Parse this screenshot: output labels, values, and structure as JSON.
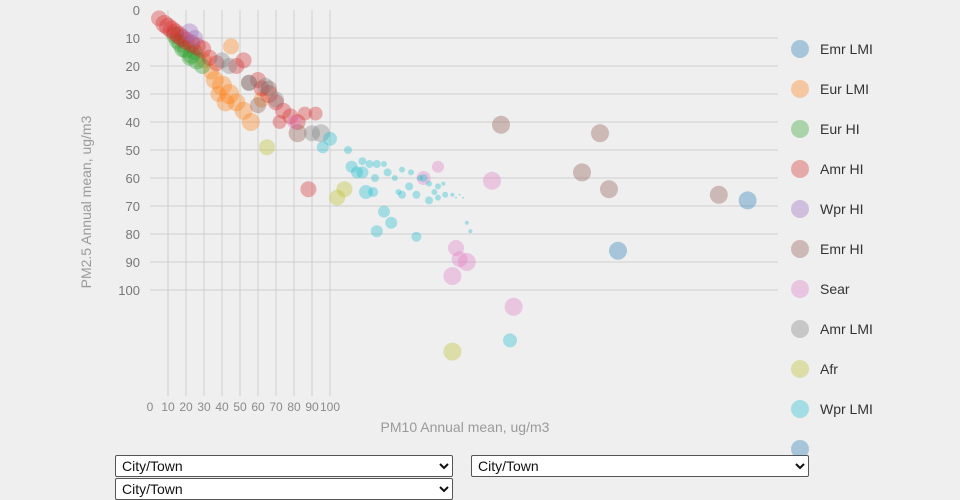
{
  "chart_data": {
    "type": "scatter",
    "xlabel": "PM10 Annual mean, ug/m3",
    "ylabel": "PM2.5 Annual mean, ug/m3",
    "xlim": [
      0,
      330
    ],
    "ylim": [
      0,
      135
    ],
    "x_ticks": [
      0,
      10,
      20,
      30,
      40,
      50,
      60,
      70,
      80,
      90,
      100
    ],
    "y_ticks": [
      0,
      10,
      20,
      30,
      40,
      50,
      60,
      70,
      80,
      90,
      100
    ],
    "x_gridlines": [
      10,
      20,
      30,
      40,
      50,
      60,
      70,
      80,
      90,
      100
    ],
    "y_gridlines": [
      10,
      20,
      30,
      40,
      50,
      60,
      70,
      80,
      90,
      100
    ],
    "legend_position": "right",
    "series": [
      {
        "name": "Emr LMI",
        "color": "#1f77b4",
        "points": [
          [
            332,
            68,
            9
          ],
          [
            260,
            86,
            9
          ]
        ]
      },
      {
        "name": "Eur LMI",
        "color": "#ff7f0e",
        "points": [
          [
            36,
            25,
            9
          ],
          [
            40,
            27,
            10
          ],
          [
            44,
            30,
            10
          ],
          [
            48,
            33,
            9
          ],
          [
            52,
            36,
            9
          ],
          [
            56,
            40,
            9
          ],
          [
            45,
            13,
            8
          ],
          [
            30,
            18,
            8
          ],
          [
            34,
            22,
            8
          ],
          [
            62,
            32,
            8
          ],
          [
            38,
            30,
            8
          ],
          [
            42,
            33,
            9
          ]
        ]
      },
      {
        "name": "Eur HI",
        "color": "#2ca02c",
        "points": [
          [
            14,
            9,
            9
          ],
          [
            17,
            12,
            9
          ],
          [
            20,
            14,
            9
          ],
          [
            23,
            16,
            9
          ],
          [
            26,
            18,
            9
          ],
          [
            29,
            20,
            8
          ],
          [
            18,
            14,
            8
          ],
          [
            22,
            17,
            8
          ],
          [
            25,
            15,
            8
          ],
          [
            15,
            11,
            8
          ]
        ]
      },
      {
        "name": "Amr HI",
        "color": "#d62728",
        "points": [
          [
            5,
            3,
            8
          ],
          [
            8,
            5,
            9
          ],
          [
            10,
            6,
            9
          ],
          [
            12,
            7,
            9
          ],
          [
            14,
            8,
            9
          ],
          [
            16,
            9,
            9
          ],
          [
            18,
            10,
            9
          ],
          [
            20,
            11,
            9
          ],
          [
            23,
            12,
            9
          ],
          [
            26,
            13,
            9
          ],
          [
            29,
            14,
            9
          ],
          [
            33,
            17,
            8
          ],
          [
            37,
            19,
            8
          ],
          [
            48,
            20,
            8
          ],
          [
            52,
            18,
            8
          ],
          [
            60,
            25,
            8
          ],
          [
            62,
            28,
            8
          ],
          [
            66,
            30,
            9
          ],
          [
            70,
            33,
            8
          ],
          [
            74,
            36,
            8
          ],
          [
            78,
            38,
            8
          ],
          [
            82,
            40,
            8
          ],
          [
            86,
            37,
            7
          ],
          [
            92,
            37,
            7
          ],
          [
            72,
            40,
            7
          ],
          [
            88,
            64,
            8
          ]
        ]
      },
      {
        "name": "Wpr HI",
        "color": "#9467bd",
        "points": [
          [
            22,
            8,
            9
          ],
          [
            25,
            10,
            8
          ]
        ]
      },
      {
        "name": "Emr HI",
        "color": "#8c564b",
        "points": [
          [
            55,
            26,
            8
          ],
          [
            66,
            28,
            8
          ],
          [
            60,
            34,
            8
          ],
          [
            82,
            44,
            9
          ],
          [
            195,
            41,
            9
          ],
          [
            240,
            58,
            9
          ],
          [
            250,
            44,
            9
          ],
          [
            255,
            64,
            9
          ],
          [
            316,
            66,
            9
          ]
        ]
      },
      {
        "name": "Sear",
        "color": "#e377c2",
        "points": [
          [
            152,
            60,
            7
          ],
          [
            160,
            56,
            6
          ],
          [
            170,
            85,
            8
          ],
          [
            168,
            95,
            9
          ],
          [
            172,
            89,
            8
          ],
          [
            176,
            90,
            9
          ],
          [
            190,
            61,
            9
          ],
          [
            202,
            106,
            9
          ],
          [
            80,
            40,
            7
          ]
        ]
      },
      {
        "name": "Amr LMI",
        "color": "#7f7f7f",
        "points": [
          [
            55,
            26,
            8
          ],
          [
            64,
            27,
            8
          ],
          [
            95,
            44,
            9
          ],
          [
            90,
            44,
            8
          ],
          [
            40,
            18,
            8
          ],
          [
            44,
            20,
            8
          ],
          [
            70,
            32,
            8
          ]
        ]
      },
      {
        "name": "Afr",
        "color": "#bcbd22",
        "points": [
          [
            65,
            49,
            8
          ],
          [
            104,
            67,
            8
          ],
          [
            108,
            64,
            8
          ],
          [
            168,
            122,
            9
          ]
        ]
      },
      {
        "name": "Wpr LMI",
        "color": "#17becf",
        "points": [
          [
            96,
            49,
            6
          ],
          [
            100,
            46,
            7
          ],
          [
            112,
            56,
            6
          ],
          [
            110,
            50,
            4
          ],
          [
            115,
            58,
            6
          ],
          [
            118,
            54,
            4
          ],
          [
            122,
            55,
            4
          ],
          [
            126,
            55,
            4
          ],
          [
            130,
            55,
            3
          ],
          [
            125,
            60,
            4
          ],
          [
            132,
            58,
            4
          ],
          [
            136,
            60,
            3
          ],
          [
            140,
            57,
            3
          ],
          [
            145,
            58,
            3
          ],
          [
            150,
            60,
            3
          ],
          [
            144,
            63,
            4
          ],
          [
            148,
            66,
            4
          ],
          [
            155,
            68,
            4
          ],
          [
            160,
            67,
            3
          ],
          [
            164,
            66,
            3
          ],
          [
            168,
            66,
            2
          ],
          [
            170,
            67,
            1
          ],
          [
            172,
            66,
            1
          ],
          [
            174,
            67,
            1
          ],
          [
            176,
            76,
            2
          ],
          [
            178,
            79,
            2
          ],
          [
            130,
            72,
            6
          ],
          [
            134,
            76,
            6
          ],
          [
            126,
            79,
            6
          ],
          [
            148,
            81,
            5
          ],
          [
            120,
            65,
            7
          ],
          [
            118,
            58,
            6
          ],
          [
            124,
            65,
            5
          ],
          [
            152,
            60,
            4
          ],
          [
            140,
            66,
            4
          ],
          [
            138,
            65,
            3
          ],
          [
            200,
            118,
            7
          ],
          [
            155,
            62,
            3
          ],
          [
            160,
            63,
            3
          ],
          [
            163,
            62,
            2
          ],
          [
            158,
            65,
            3
          ]
        ]
      },
      {
        "name": "",
        "color": "#1f77b4",
        "points": []
      }
    ]
  },
  "controls": {
    "select_1": "City/Town",
    "select_2": "City/Town",
    "select_3": "City/Town"
  }
}
